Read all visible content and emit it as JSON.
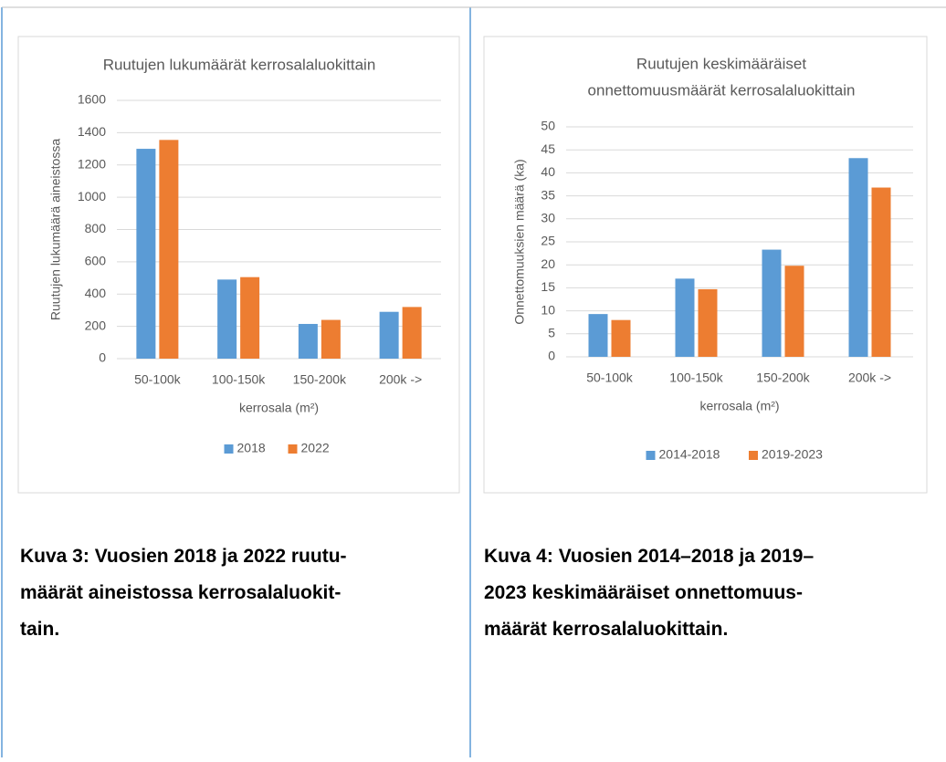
{
  "chart_data": [
    {
      "type": "bar",
      "title": [
        "Ruutujen lukumäärät kerrosalaluokittain"
      ],
      "xlabel": "kerrosala (m²)",
      "ylabel": "Ruutujen lukumäärä aineistossa",
      "categories": [
        "50-100k",
        "100-150k",
        "150-200k",
        "200k ->"
      ],
      "series": [
        {
          "name": "2018",
          "color": "#5b9bd5",
          "values": [
            1300,
            490,
            215,
            290
          ]
        },
        {
          "name": "2022",
          "color": "#ed7d31",
          "values": [
            1355,
            505,
            240,
            320
          ]
        }
      ],
      "ylim": [
        0,
        1600
      ],
      "yticks": [
        0,
        200,
        400,
        600,
        800,
        1000,
        1200,
        1400,
        1600
      ],
      "grid": true,
      "legend": "bottom",
      "caption": [
        "Kuva 3: Vuosien 2018 ja 2022 ruutu-",
        "määrät aineistossa kerrosalaluokit-",
        "tain."
      ]
    },
    {
      "type": "bar",
      "title": [
        "Ruutujen keskimääräiset",
        "onnettomuusmäärät kerrosalaluokittain"
      ],
      "xlabel": "kerrosala (m²)",
      "ylabel": "Onnettomuuksien määrä (ka)",
      "categories": [
        "50-100k",
        "100-150k",
        "150-200k",
        "200k ->"
      ],
      "series": [
        {
          "name": "2014-2018",
          "color": "#5b9bd5",
          "values": [
            9.3,
            17,
            23.3,
            43.2
          ]
        },
        {
          "name": "2019-2023",
          "color": "#ed7d31",
          "values": [
            8,
            14.7,
            19.8,
            36.8
          ]
        }
      ],
      "ylim": [
        0,
        50
      ],
      "yticks": [
        0,
        5,
        10,
        15,
        20,
        25,
        30,
        35,
        40,
        45,
        50
      ],
      "grid": true,
      "legend": "bottom",
      "caption": [
        "Kuva 4: Vuosien 2014–2018 ja 2019–",
        "2023 keskimääräiset onnettomuus-",
        "määrät kerrosalaluokittain."
      ]
    }
  ]
}
